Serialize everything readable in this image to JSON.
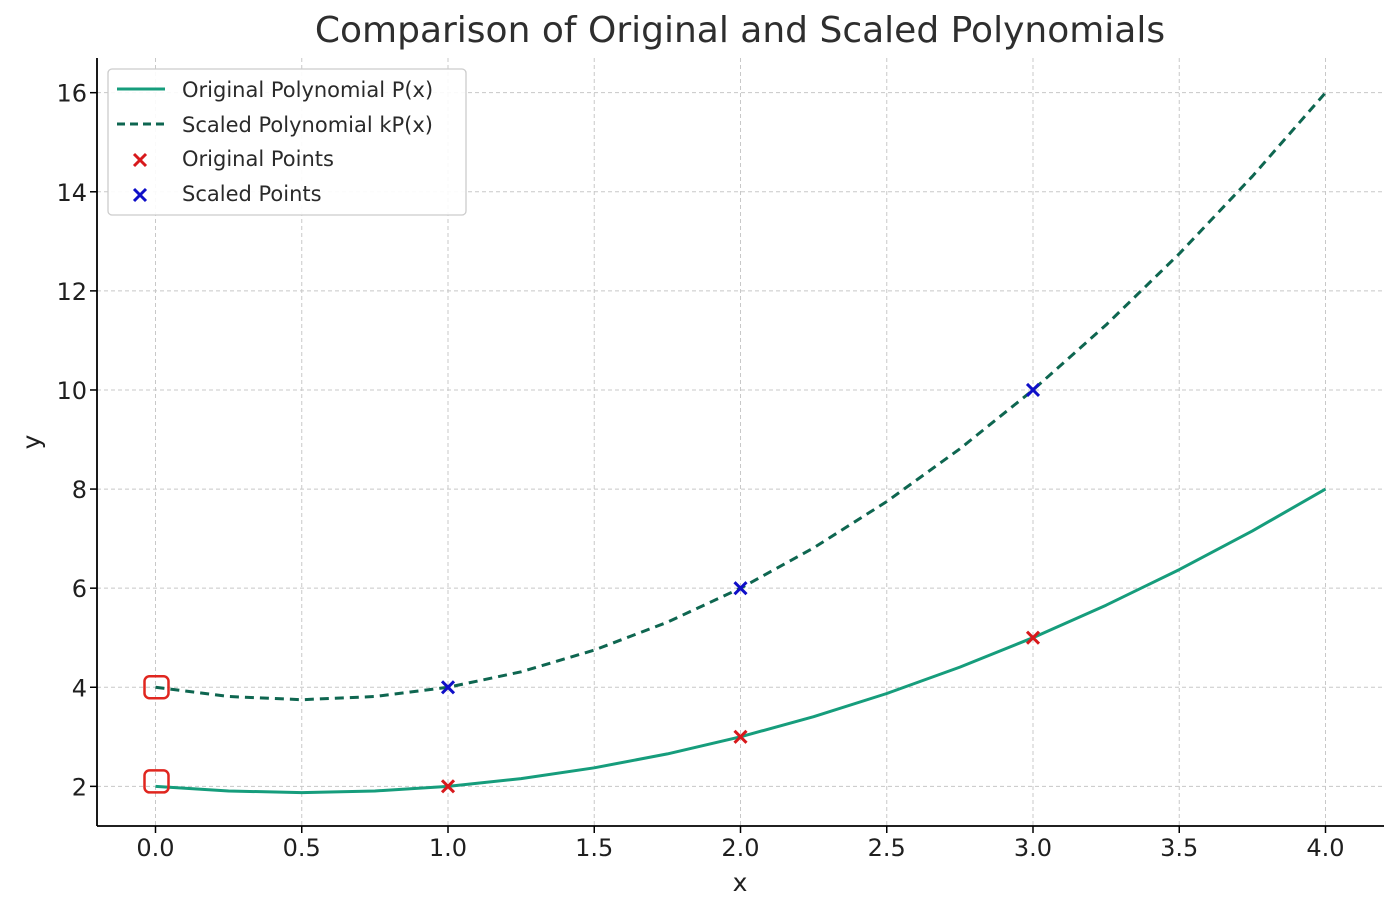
{
  "chart_data": {
    "type": "line",
    "title": "Comparison of Original and Scaled Polynomials",
    "xlabel": "x",
    "ylabel": "y",
    "xlim": [
      -0.2,
      4.2
    ],
    "ylim": [
      1.2,
      16.7
    ],
    "xticks": [
      "0.0",
      "0.5",
      "1.0",
      "1.5",
      "2.0",
      "2.5",
      "3.0",
      "3.5",
      "4.0"
    ],
    "yticks": [
      "2",
      "4",
      "6",
      "8",
      "10",
      "12",
      "14",
      "16"
    ],
    "grid": true,
    "legend_position": "top-left",
    "series": [
      {
        "name": "Original Polynomial P(x)",
        "kind": "line",
        "style": "solid",
        "color": "#169d7c",
        "x": [
          0,
          0.25,
          0.5,
          0.75,
          1,
          1.25,
          1.5,
          1.75,
          2,
          2.25,
          2.5,
          2.75,
          3,
          3.25,
          3.5,
          3.75,
          4
        ],
        "y": [
          2,
          1.906,
          1.875,
          1.906,
          2,
          2.156,
          2.375,
          2.656,
          3,
          3.406,
          3.875,
          4.406,
          5,
          5.656,
          6.375,
          7.156,
          8
        ]
      },
      {
        "name": "Scaled Polynomial kP(x)",
        "kind": "line",
        "style": "dashed",
        "color": "#0e6650",
        "x": [
          0,
          0.25,
          0.5,
          0.75,
          1,
          1.25,
          1.5,
          1.75,
          2,
          2.25,
          2.5,
          2.75,
          3,
          3.25,
          3.5,
          3.75,
          4
        ],
        "y": [
          4,
          3.813,
          3.75,
          3.813,
          4,
          4.313,
          4.75,
          5.313,
          6,
          6.813,
          7.75,
          8.813,
          10,
          11.313,
          12.75,
          14.313,
          16
        ]
      },
      {
        "name": "Original Points",
        "kind": "scatter",
        "marker": "x",
        "color": "#d8191c",
        "x": [
          1,
          2,
          3
        ],
        "y": [
          2,
          3,
          5
        ]
      },
      {
        "name": "Scaled Points",
        "kind": "scatter",
        "marker": "x",
        "color": "#0f0fc8",
        "x": [
          1,
          2,
          3
        ],
        "y": [
          4,
          6,
          10
        ]
      }
    ],
    "highlight_markers": {
      "shape": "rounded-square",
      "color": "#e0261f",
      "points": [
        {
          "x": 0,
          "y": 4
        },
        {
          "x": 0,
          "y": 2.1
        }
      ]
    }
  }
}
